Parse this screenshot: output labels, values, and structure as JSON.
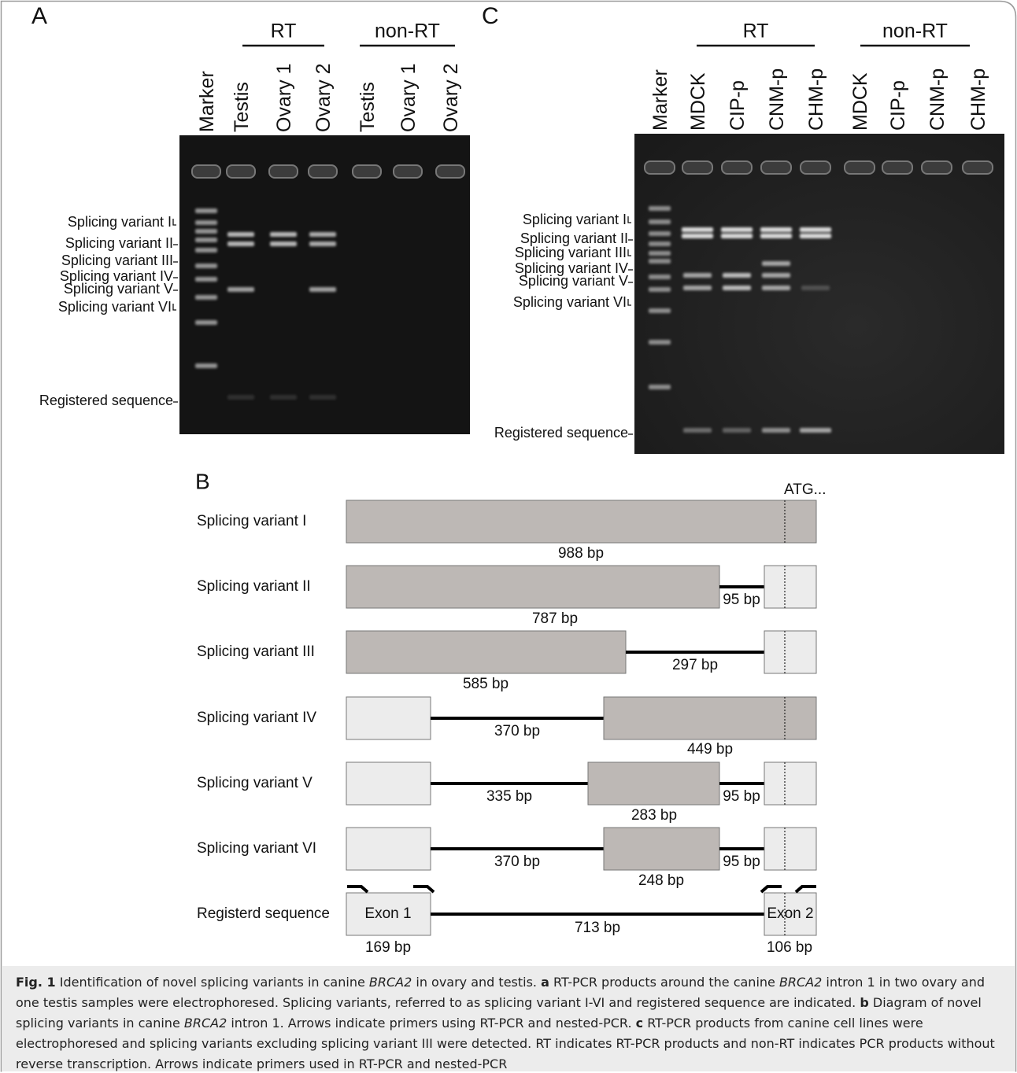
{
  "panel_a": {
    "letter": "A",
    "groups": [
      "RT",
      "non-RT"
    ],
    "lanes": [
      "Marker",
      "Testis",
      "Ovary 1",
      "Ovary 2",
      "Testis",
      "Ovary 1",
      "Ovary 2"
    ],
    "bands": [
      "Splicing variant I",
      "Splicing variant II",
      "Splicing variant III",
      "Splicing variant IV",
      "Splicing variant V",
      "Splicing variant VI",
      "Registered sequence"
    ]
  },
  "panel_c": {
    "letter": "C",
    "groups": [
      "RT",
      "non-RT"
    ],
    "lanes": [
      "Marker",
      "MDCK",
      "CIP-p",
      "CNM-p",
      "CHM-p",
      "MDCK",
      "CIP-p",
      "CNM-p",
      "CHM-p"
    ],
    "bands": [
      "Splicing variant I",
      "Splicing variant II",
      "Splicing variant III",
      "Splicing variant IV",
      "Splicing variant V",
      "Splicing variant VI",
      "Registered sequence"
    ]
  },
  "panel_b": {
    "letter": "B",
    "start_codon": "ATG...",
    "rows": [
      {
        "name": "Splicing variant I",
        "segments": [
          "988 bp"
        ]
      },
      {
        "name": "Splicing variant II",
        "segments": [
          "787 bp",
          "95 bp"
        ]
      },
      {
        "name": "Splicing variant III",
        "segments": [
          "585 bp",
          "297 bp"
        ]
      },
      {
        "name": "Splicing variant IV",
        "segments": [
          "370 bp",
          "449 bp"
        ]
      },
      {
        "name": "Splicing variant V",
        "segments": [
          "335 bp",
          "283 bp",
          "95 bp"
        ]
      },
      {
        "name": "Splicing variant VI",
        "segments": [
          "370 bp",
          "248 bp",
          "95 bp"
        ]
      },
      {
        "name": "Registerd sequence",
        "exons": [
          "Exon 1",
          "Exon 2"
        ],
        "segments": [
          "169 bp",
          "713 bp",
          "106 bp"
        ]
      }
    ]
  },
  "caption": [
    "Fig. 1",
    " Identification of novel splicing variants in canine ",
    "BRCA2",
    " in ovary and testis. ",
    "a",
    " RT-PCR products around the canine ",
    "BRCA2",
    " intron 1 in two ovary and one testis samples were electrophoresed. Splicing variants, referred to as splicing variant I-VI and registered sequence are indicated. ",
    "b",
    " Diagram of novel splicing variants in canine ",
    "BRCA2",
    " intron 1. Arrows indicate primers using RT-PCR and nested-PCR. ",
    "c",
    " RT-PCR products from canine cell lines were electrophoresed and splicing variants excluding splicing variant III were detected. RT indicates RT-PCR products and non-RT indicates PCR products without reverse transcription. Arrows indicate primers used in RT-PCR and nested-PCR"
  ]
}
